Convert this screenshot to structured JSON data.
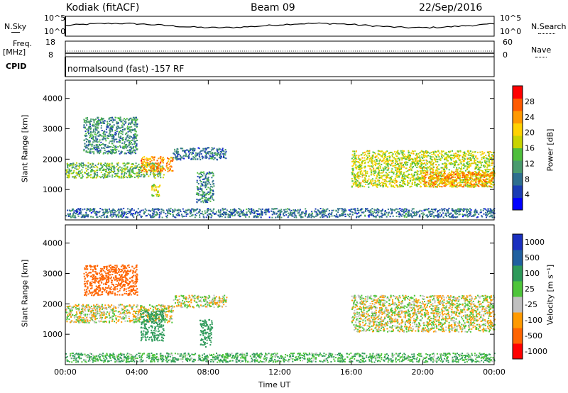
{
  "header": {
    "station": "Kodiak (fitACF)",
    "beam": "Beam 09",
    "date": "22/Sep/2016"
  },
  "top_panels": {
    "nsky_label": "N.Sky",
    "nsky_ticks": [
      "10^5",
      "10^0"
    ],
    "nsearch_label": "N.Search",
    "nsearch_ticks": [
      "10^5",
      "10^0"
    ],
    "freq_label": "Freq.",
    "freq_unit": "[MHz]",
    "freq_ticks": [
      "18",
      "8"
    ],
    "nave_label": "Nave",
    "nave_ticks": [
      "60",
      "0"
    ],
    "cpid_label": "CPID",
    "cpid_text": "normalsound (fast) -157 RF"
  },
  "colors": {
    "power": [
      "#0000ff",
      "#1a3cb4",
      "#2e6f8e",
      "#4a9b6e",
      "#4fbf3c",
      "#c8d400",
      "#ffd200",
      "#ff9900",
      "#ff5a00",
      "#ff0000"
    ],
    "velocity": [
      "#ff0000",
      "#ff6400",
      "#ff9a00",
      "#c0c0c0",
      "#4ec53a",
      "#2e9a5a",
      "#2060a0",
      "#1a30c0"
    ]
  },
  "chart_data": [
    {
      "type": "heatmap",
      "title": "",
      "xlabel": "",
      "ylabel": "Slant Range [km]",
      "xlim": [
        0,
        24
      ],
      "ylim": [
        0,
        4600
      ],
      "y_ticks": [
        "1000",
        "2000",
        "3000",
        "4000"
      ],
      "colorbar_label": "Power [dB]",
      "colorbar_ticks": [
        "4",
        "8",
        "12",
        "16",
        "20",
        "24",
        "28"
      ],
      "colorbar_range": [
        0,
        32
      ],
      "regions": [
        {
          "x": [
            0.0,
            5.5
          ],
          "y": [
            1400,
            1900
          ],
          "value": 14
        },
        {
          "x": [
            1.0,
            4.0
          ],
          "y": [
            2200,
            3400
          ],
          "value": 10
        },
        {
          "x": [
            4.2,
            6.0
          ],
          "y": [
            1600,
            2100
          ],
          "value": 24
        },
        {
          "x": [
            4.8,
            5.3
          ],
          "y": [
            800,
            1200
          ],
          "value": 18
        },
        {
          "x": [
            6.0,
            9.0
          ],
          "y": [
            2000,
            2400
          ],
          "value": 8
        },
        {
          "x": [
            7.3,
            8.3
          ],
          "y": [
            600,
            1600
          ],
          "value": 10
        },
        {
          "x": [
            16.0,
            24.0
          ],
          "y": [
            1100,
            2300
          ],
          "value": 18
        },
        {
          "x": [
            20.0,
            24.0
          ],
          "y": [
            1100,
            1600
          ],
          "value": 24
        },
        {
          "x": [
            0.0,
            24.0
          ],
          "y": [
            100,
            400
          ],
          "value": 8
        }
      ]
    },
    {
      "type": "heatmap",
      "title": "",
      "xlabel": "Time UT",
      "ylabel": "Slant Range [km]",
      "xlim": [
        0,
        24
      ],
      "ylim": [
        0,
        4600
      ],
      "x_ticks": [
        "00:00",
        "04:00",
        "08:00",
        "12:00",
        "16:00",
        "20:00",
        "00:00"
      ],
      "y_ticks": [
        "1000",
        "2000",
        "3000",
        "4000"
      ],
      "colorbar_label": "Velocity [m s⁻¹]",
      "colorbar_ticks": [
        "1000",
        "500",
        "100",
        "25",
        "-25",
        "-100",
        "-500",
        "-1000"
      ],
      "regions": [
        {
          "x": [
            0.0,
            6.0
          ],
          "y": [
            1400,
            2000
          ],
          "value": 0
        },
        {
          "x": [
            1.0,
            4.0
          ],
          "y": [
            2300,
            3300
          ],
          "value": -300
        },
        {
          "x": [
            4.2,
            5.5
          ],
          "y": [
            800,
            1800
          ],
          "value": 300
        },
        {
          "x": [
            6.0,
            9.0
          ],
          "y": [
            1900,
            2300
          ],
          "value": 0
        },
        {
          "x": [
            7.5,
            8.2
          ],
          "y": [
            600,
            1500
          ],
          "value": 300
        },
        {
          "x": [
            16.0,
            24.0
          ],
          "y": [
            1100,
            2300
          ],
          "value": 0
        },
        {
          "x": [
            0.0,
            24.0
          ],
          "y": [
            100,
            400
          ],
          "value": 100
        }
      ]
    }
  ]
}
